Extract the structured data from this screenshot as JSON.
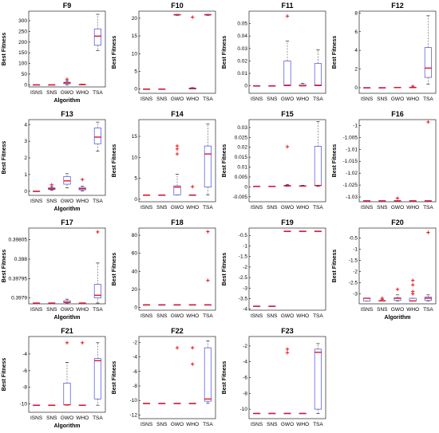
{
  "colors": {
    "box": "#4a4ae0",
    "median": "#e8141c",
    "outlier": "#e8141c",
    "whisker": "#555555",
    "axis": "#000000"
  },
  "chart_data": [
    {
      "type": "box",
      "title": "F9",
      "ylabel": "Best Fitness",
      "xlabel": "Algorithm",
      "ylim": [
        -10,
        345
      ],
      "yticks": [
        0,
        50,
        100,
        150,
        200,
        250,
        300
      ],
      "yticklabels": [
        "0",
        "50",
        "100",
        "150",
        "200",
        "250",
        "300"
      ],
      "categories": [
        "ISNS",
        "SNS",
        "GWO",
        "WHO",
        "TSA"
      ],
      "boxes": [
        {
          "q1": 0,
          "med": 0,
          "q3": 0,
          "lo": 0,
          "hi": 0,
          "out": []
        },
        {
          "q1": 0,
          "med": 0,
          "q3": 0,
          "lo": 0,
          "hi": 0,
          "out": []
        },
        {
          "q1": 5,
          "med": 9,
          "q3": 12,
          "lo": 0,
          "hi": 18,
          "out": [
            26
          ]
        },
        {
          "q1": 0,
          "med": 1,
          "q3": 2,
          "lo": 0,
          "hi": 3,
          "out": []
        },
        {
          "q1": 185,
          "med": 228,
          "q3": 262,
          "lo": 160,
          "hi": 330,
          "out": []
        }
      ]
    },
    {
      "type": "box",
      "title": "F10",
      "ylabel": "Best Fitness",
      "xlabel": "",
      "ylim": [
        -1.2,
        22
      ],
      "yticks": [
        0,
        5,
        10,
        15,
        20
      ],
      "yticklabels": [
        "0",
        "5",
        "10",
        "15",
        "20"
      ],
      "categories": [
        "ISNS",
        "SNS",
        "GWO",
        "WHO",
        "TSA"
      ],
      "boxes": [
        {
          "q1": 0,
          "med": 0,
          "q3": 0,
          "lo": 0,
          "hi": 0,
          "out": []
        },
        {
          "q1": 0,
          "med": 0,
          "q3": 0,
          "lo": 0,
          "hi": 0,
          "out": []
        },
        {
          "q1": 20.9,
          "med": 21,
          "q3": 21.05,
          "lo": 20.8,
          "hi": 21.1,
          "out": []
        },
        {
          "q1": 0,
          "med": 0.2,
          "q3": 0.3,
          "lo": 0,
          "hi": 0.4,
          "out": [
            20.3
          ]
        },
        {
          "q1": 20.9,
          "med": 21,
          "q3": 21.05,
          "lo": 20.8,
          "hi": 21.1,
          "out": []
        }
      ]
    },
    {
      "type": "box",
      "title": "F11",
      "ylabel": "Best Fitness",
      "xlabel": "",
      "ylim": [
        -0.006,
        0.06
      ],
      "yticks": [
        0,
        0.01,
        0.02,
        0.03,
        0.04,
        0.05
      ],
      "yticklabels": [
        "0",
        "0.01",
        "0.02",
        "0.03",
        "0.04",
        "0.05"
      ],
      "categories": [
        "ISNS",
        "SNS",
        "GWO",
        "WHO",
        "TSA"
      ],
      "boxes": [
        {
          "q1": 0,
          "med": 0,
          "q3": 0,
          "lo": 0,
          "hi": 0,
          "out": []
        },
        {
          "q1": 0,
          "med": 0,
          "q3": 0,
          "lo": 0,
          "hi": 0,
          "out": []
        },
        {
          "q1": 0,
          "med": 0.0005,
          "q3": 0.02,
          "lo": 0,
          "hi": 0.036,
          "out": [
            0.056
          ]
        },
        {
          "q1": 0,
          "med": 0,
          "q3": 0.001,
          "lo": 0,
          "hi": 0.002,
          "out": []
        },
        {
          "q1": 0,
          "med": 0.0005,
          "q3": 0.018,
          "lo": 0,
          "hi": 0.029,
          "out": []
        }
      ]
    },
    {
      "type": "box",
      "title": "F12",
      "ylabel": "Best Fitness",
      "xlabel": "",
      "ylim": [
        -0.6,
        8.2
      ],
      "yticks": [
        0,
        2,
        4,
        6,
        8
      ],
      "yticklabels": [
        "0",
        "2",
        "4",
        "6",
        "8"
      ],
      "categories": [
        "ISNS",
        "SNS",
        "GWO",
        "WHO",
        "TSA"
      ],
      "boxes": [
        {
          "q1": 0,
          "med": 0,
          "q3": 0,
          "lo": 0,
          "hi": 0,
          "out": []
        },
        {
          "q1": 0,
          "med": 0,
          "q3": 0,
          "lo": 0,
          "hi": 0,
          "out": []
        },
        {
          "q1": 0,
          "med": 0.02,
          "q3": 0.04,
          "lo": 0,
          "hi": 0.06,
          "out": []
        },
        {
          "q1": 0,
          "med": 0.02,
          "q3": 0.04,
          "lo": 0,
          "hi": 0.06,
          "out": [
            0.15
          ]
        },
        {
          "q1": 1.1,
          "med": 2.1,
          "q3": 4.3,
          "lo": 0.4,
          "hi": 7.7,
          "out": []
        }
      ]
    },
    {
      "type": "box",
      "title": "F13",
      "ylabel": "Best Fitness",
      "xlabel": "Algorithm",
      "ylim": [
        -0.25,
        4.3
      ],
      "yticks": [
        0,
        1,
        2,
        3,
        4
      ],
      "yticklabels": [
        "0",
        "1",
        "2",
        "3",
        "4"
      ],
      "categories": [
        "ISNS",
        "SNS",
        "GWO",
        "WHO",
        "TSA"
      ],
      "boxes": [
        {
          "q1": 0,
          "med": 0,
          "q3": 0,
          "lo": 0,
          "hi": 0,
          "out": []
        },
        {
          "q1": 0.1,
          "med": 0.15,
          "q3": 0.2,
          "lo": 0.05,
          "hi": 0.27,
          "out": [
            0.38
          ]
        },
        {
          "q1": 0.42,
          "med": 0.62,
          "q3": 0.88,
          "lo": 0.2,
          "hi": 1.05,
          "out": []
        },
        {
          "q1": 0.08,
          "med": 0.15,
          "q3": 0.22,
          "lo": 0.02,
          "hi": 0.3,
          "out": [
            0.7
          ]
        },
        {
          "q1": 2.85,
          "med": 3.25,
          "q3": 3.8,
          "lo": 2.4,
          "hi": 4.15,
          "out": []
        }
      ]
    },
    {
      "type": "box",
      "title": "F14",
      "ylabel": "Best Fitness",
      "xlabel": "",
      "ylim": [
        -0.6,
        19
      ],
      "yticks": [
        0,
        5,
        10,
        15
      ],
      "yticklabels": [
        "0",
        "5",
        "10",
        "15"
      ],
      "categories": [
        "ISNS",
        "SNS",
        "GWO",
        "WHO",
        "TSA"
      ],
      "boxes": [
        {
          "q1": 1,
          "med": 1,
          "q3": 1,
          "lo": 1,
          "hi": 1,
          "out": []
        },
        {
          "q1": 1,
          "med": 1,
          "q3": 1,
          "lo": 1,
          "hi": 1,
          "out": []
        },
        {
          "q1": 1,
          "med": 2.9,
          "q3": 3.2,
          "lo": 1,
          "hi": 6,
          "out": [
            10.8,
            12,
            12.7
          ]
        },
        {
          "q1": 1,
          "med": 1,
          "q3": 1,
          "lo": 1,
          "hi": 1,
          "out": [
            3
          ]
        },
        {
          "q1": 2.9,
          "med": 10.8,
          "q3": 12.7,
          "lo": 1,
          "hi": 18
        }
      ]
    },
    {
      "type": "box",
      "title": "F15",
      "ylabel": "Best Fitness",
      "xlabel": "",
      "ylim": [
        -0.0075,
        0.034
      ],
      "yticks": [
        -0.005,
        0,
        0.005,
        0.01,
        0.015,
        0.02,
        0.025,
        0.03
      ],
      "yticklabels": [
        "-0.005",
        "0",
        "0.005",
        "0.01",
        "0.015",
        "0.02",
        "0.025",
        "0.03"
      ],
      "categories": [
        "ISNS",
        "SNS",
        "GWO",
        "WHO",
        "TSA"
      ],
      "boxes": [
        {
          "q1": 0.0003,
          "med": 0.0003,
          "q3": 0.0003,
          "lo": 0.0003,
          "hi": 0.0003,
          "out": []
        },
        {
          "q1": 0.0003,
          "med": 0.0003,
          "q3": 0.0003,
          "lo": 0.0003,
          "hi": 0.0003,
          "out": []
        },
        {
          "q1": 0.0004,
          "med": 0.0006,
          "q3": 0.0008,
          "lo": 0.0003,
          "hi": 0.0012,
          "out": [
            0.0203
          ]
        },
        {
          "q1": 0.0003,
          "med": 0.0004,
          "q3": 0.0006,
          "lo": 0.0003,
          "hi": 0.0008,
          "out": []
        },
        {
          "q1": 0.0007,
          "med": 0.0007,
          "q3": 0.0205,
          "lo": 0.0003,
          "hi": 0.033,
          "out": []
        }
      ]
    },
    {
      "type": "box",
      "title": "F16",
      "ylabel": "Best Fitness",
      "xlabel": "",
      "ylim": [
        -1.032,
        -0.9975
      ],
      "yticks": [
        -1.03,
        -1.025,
        -1.02,
        -1.015,
        -1.01,
        -1.005,
        -1
      ],
      "yticklabels": [
        "-1.03",
        "-1.025",
        "-1.02",
        "-1.015",
        "-1.01",
        "-1.005",
        "-1"
      ],
      "categories": [
        "ISNS",
        "SNS",
        "GWO",
        "WHO",
        "TSA"
      ],
      "boxes": [
        {
          "q1": -1.0316,
          "med": -1.0316,
          "q3": -1.0316,
          "lo": -1.0316,
          "hi": -1.0316,
          "out": []
        },
        {
          "q1": -1.0316,
          "med": -1.0316,
          "q3": -1.0316,
          "lo": -1.0316,
          "hi": -1.0316,
          "out": []
        },
        {
          "q1": -1.0316,
          "med": -1.0316,
          "q3": -1.0316,
          "lo": -1.0316,
          "hi": -1.0316,
          "out": [
            -1.0305
          ]
        },
        {
          "q1": -1.0316,
          "med": -1.0316,
          "q3": -1.0316,
          "lo": -1.0316,
          "hi": -1.0316,
          "out": []
        },
        {
          "q1": -1.0316,
          "med": -1.0316,
          "q3": -1.0316,
          "lo": -1.0316,
          "hi": -1.0316,
          "out": [
            -0.9985
          ]
        }
      ]
    },
    {
      "type": "box",
      "title": "F17",
      "ylabel": "Best Fitness",
      "xlabel": "Algorithm",
      "ylim": [
        0.397885,
        0.39808
      ],
      "yticks": [
        0.3979,
        0.39795,
        0.398,
        0.39805
      ],
      "yticklabels": [
        "0.3979",
        "0.39795",
        "0.398",
        "0.39805"
      ],
      "categories": [
        "ISNS",
        "SNS",
        "GWO",
        "WHO",
        "TSA"
      ],
      "boxes": [
        {
          "q1": 0.397887,
          "med": 0.397887,
          "q3": 0.397887,
          "lo": 0.397887,
          "hi": 0.397887,
          "out": []
        },
        {
          "q1": 0.397887,
          "med": 0.397887,
          "q3": 0.397887,
          "lo": 0.397887,
          "hi": 0.397887,
          "out": []
        },
        {
          "q1": 0.397888,
          "med": 0.397889,
          "q3": 0.397893,
          "lo": 0.397887,
          "hi": 0.397897,
          "out": []
        },
        {
          "q1": 0.397887,
          "med": 0.397887,
          "q3": 0.397887,
          "lo": 0.397887,
          "hi": 0.397887,
          "out": []
        },
        {
          "q1": 0.3979,
          "med": 0.397907,
          "q3": 0.397935,
          "lo": 0.397887,
          "hi": 0.39799,
          "out": [
            0.39807
          ]
        }
      ]
    },
    {
      "type": "box",
      "title": "F18",
      "ylabel": "Best Fitness",
      "xlabel": "",
      "ylim": [
        -3,
        88
      ],
      "yticks": [
        0,
        20,
        40,
        60,
        80
      ],
      "yticklabels": [
        "0",
        "20",
        "40",
        "60",
        "80"
      ],
      "categories": [
        "ISNS",
        "SNS",
        "GWO",
        "WHO",
        "TSA"
      ],
      "boxes": [
        {
          "q1": 3,
          "med": 3,
          "q3": 3,
          "lo": 3,
          "hi": 3,
          "out": []
        },
        {
          "q1": 3,
          "med": 3,
          "q3": 3,
          "lo": 3,
          "hi": 3,
          "out": []
        },
        {
          "q1": 3,
          "med": 3,
          "q3": 3,
          "lo": 3,
          "hi": 3,
          "out": []
        },
        {
          "q1": 3,
          "med": 3,
          "q3": 3,
          "lo": 3,
          "hi": 3,
          "out": []
        },
        {
          "q1": 3,
          "med": 3,
          "q3": 3,
          "lo": 3,
          "hi": 3,
          "out": [
            30,
            84
          ]
        }
      ]
    },
    {
      "type": "box",
      "title": "F19",
      "ylabel": "Best Fitness",
      "xlabel": "",
      "ylim": [
        -4.05,
        -0.15
      ],
      "yticks": [
        -4,
        -3.5,
        -3,
        -2.5,
        -2,
        -1.5,
        -1,
        -0.5
      ],
      "yticklabels": [
        "-4",
        "-3.5",
        "-3",
        "-2.5",
        "-2",
        "-1.5",
        "-1",
        "-0.5"
      ],
      "categories": [
        "ISNS",
        "SNS",
        "GWO",
        "WHO",
        "TSA"
      ],
      "boxes": [
        {
          "q1": -3.86,
          "med": -3.86,
          "q3": -3.86,
          "lo": -3.86,
          "hi": -3.86,
          "out": []
        },
        {
          "q1": -3.86,
          "med": -3.86,
          "q3": -3.86,
          "lo": -3.86,
          "hi": -3.86,
          "out": []
        },
        {
          "q1": -0.3,
          "med": -0.3,
          "q3": -0.3,
          "lo": -0.3,
          "hi": -0.3,
          "out": []
        },
        {
          "q1": -0.3,
          "med": -0.3,
          "q3": -0.3,
          "lo": -0.3,
          "hi": -0.3,
          "out": []
        },
        {
          "q1": -0.3,
          "med": -0.3,
          "q3": -0.3,
          "lo": -0.3,
          "hi": -0.3,
          "out": []
        }
      ]
    },
    {
      "type": "box",
      "title": "F20",
      "ylabel": "Best Fitness",
      "xlabel": "Algorithm",
      "ylim": [
        -3.45,
        -0.05
      ],
      "yticks": [
        -3,
        -2.5,
        -2,
        -1.5,
        -1,
        -0.5
      ],
      "yticklabels": [
        "-3",
        "-2.5",
        "-2",
        "-1.5",
        "-1",
        "-0.5"
      ],
      "categories": [
        "ISNS",
        "SNS",
        "GWO",
        "WHO",
        "TSA"
      ],
      "boxes": [
        {
          "q1": -3.32,
          "med": -3.2,
          "q3": -3.2,
          "lo": -3.32,
          "hi": -3.2,
          "out": []
        },
        {
          "q1": -3.32,
          "med": -3.32,
          "q3": -3.3,
          "lo": -3.32,
          "hi": -3.25,
          "out": [
            -3.2
          ]
        },
        {
          "q1": -3.3,
          "med": -3.2,
          "q3": -3.18,
          "lo": -3.32,
          "hi": -3.05,
          "out": [
            -2.8
          ]
        },
        {
          "q1": -3.32,
          "med": -3.32,
          "q3": -3.2,
          "lo": -3.32,
          "hi": -3.2,
          "out": [
            -2.4,
            -2.6,
            -2.9,
            -3.0
          ]
        },
        {
          "q1": -3.3,
          "med": -3.2,
          "q3": -3.15,
          "lo": -3.32,
          "hi": -3.05,
          "out": [
            -0.25
          ]
        }
      ]
    },
    {
      "type": "box",
      "title": "F21",
      "ylabel": "Best Fitness",
      "xlabel": "Algorithm",
      "ylim": [
        -11,
        -1.9
      ],
      "yticks": [
        -10,
        -8,
        -6,
        -4
      ],
      "yticklabels": [
        "-10",
        "-8",
        "-6",
        "-4"
      ],
      "categories": [
        "ISNS",
        "SNS",
        "GWO",
        "WHO",
        "TSA"
      ],
      "boxes": [
        {
          "q1": -10.15,
          "med": -10.15,
          "q3": -10.15,
          "lo": -10.15,
          "hi": -10.15,
          "out": []
        },
        {
          "q1": -10.15,
          "med": -10.15,
          "q3": -10.15,
          "lo": -10.15,
          "hi": -10.15,
          "out": []
        },
        {
          "q1": -10.1,
          "med": -10.1,
          "q3": -7.5,
          "lo": -10.15,
          "hi": -5,
          "out": [
            -2.65
          ]
        },
        {
          "q1": -10.15,
          "med": -10.15,
          "q3": -10.15,
          "lo": -10.15,
          "hi": -10.15,
          "out": [
            -2.65
          ]
        },
        {
          "q1": -9.4,
          "med": -4.8,
          "q3": -4.55,
          "lo": -10.15,
          "hi": -2.65,
          "out": []
        }
      ]
    },
    {
      "type": "box",
      "title": "F22",
      "ylabel": "Best Fitness",
      "xlabel": "",
      "ylim": [
        -12.5,
        -1.2
      ],
      "yticks": [
        -12,
        -10,
        -8,
        -6,
        -4,
        -2
      ],
      "yticklabels": [
        "-12",
        "-10",
        "-8",
        "-6",
        "-4",
        "-2"
      ],
      "categories": [
        "ISNS",
        "SNS",
        "GWO",
        "WHO",
        "TSA"
      ],
      "boxes": [
        {
          "q1": -10.4,
          "med": -10.4,
          "q3": -10.4,
          "lo": -10.4,
          "hi": -10.4,
          "out": []
        },
        {
          "q1": -10.4,
          "med": -10.4,
          "q3": -10.4,
          "lo": -10.4,
          "hi": -10.4,
          "out": []
        },
        {
          "q1": -10.4,
          "med": -10.4,
          "q3": -10.4,
          "lo": -10.4,
          "hi": -10.4,
          "out": [
            -2.75
          ]
        },
        {
          "q1": -10.4,
          "med": -10.4,
          "q3": -10.4,
          "lo": -10.4,
          "hi": -10.4,
          "out": [
            -2.75,
            -5
          ]
        },
        {
          "q1": -10.1,
          "med": -9.8,
          "q3": -2.75,
          "lo": -10.4,
          "hi": -1.8,
          "out": []
        }
      ]
    },
    {
      "type": "box",
      "title": "F23",
      "ylabel": "Best Fitness",
      "xlabel": "",
      "ylim": [
        -11.2,
        -0.8
      ],
      "yticks": [
        -10,
        -8,
        -6,
        -4,
        -2
      ],
      "yticklabels": [
        "-10",
        "-8",
        "-6",
        "-4",
        "-2"
      ],
      "categories": [
        "ISNS",
        "SNS",
        "GWO",
        "WHO",
        "TSA"
      ],
      "boxes": [
        {
          "q1": -10.53,
          "med": -10.53,
          "q3": -10.53,
          "lo": -10.53,
          "hi": -10.53,
          "out": []
        },
        {
          "q1": -10.53,
          "med": -10.53,
          "q3": -10.53,
          "lo": -10.53,
          "hi": -10.53,
          "out": []
        },
        {
          "q1": -10.53,
          "med": -10.53,
          "q3": -10.53,
          "lo": -10.53,
          "hi": -10.53,
          "out": [
            -2.4,
            -2.85
          ]
        },
        {
          "q1": -10.53,
          "med": -10.53,
          "q3": -10.53,
          "lo": -10.53,
          "hi": -10.53,
          "out": []
        },
        {
          "q1": -10,
          "med": -2.8,
          "q3": -2.4,
          "lo": -10.53,
          "hi": -1.7,
          "out": []
        }
      ]
    }
  ]
}
